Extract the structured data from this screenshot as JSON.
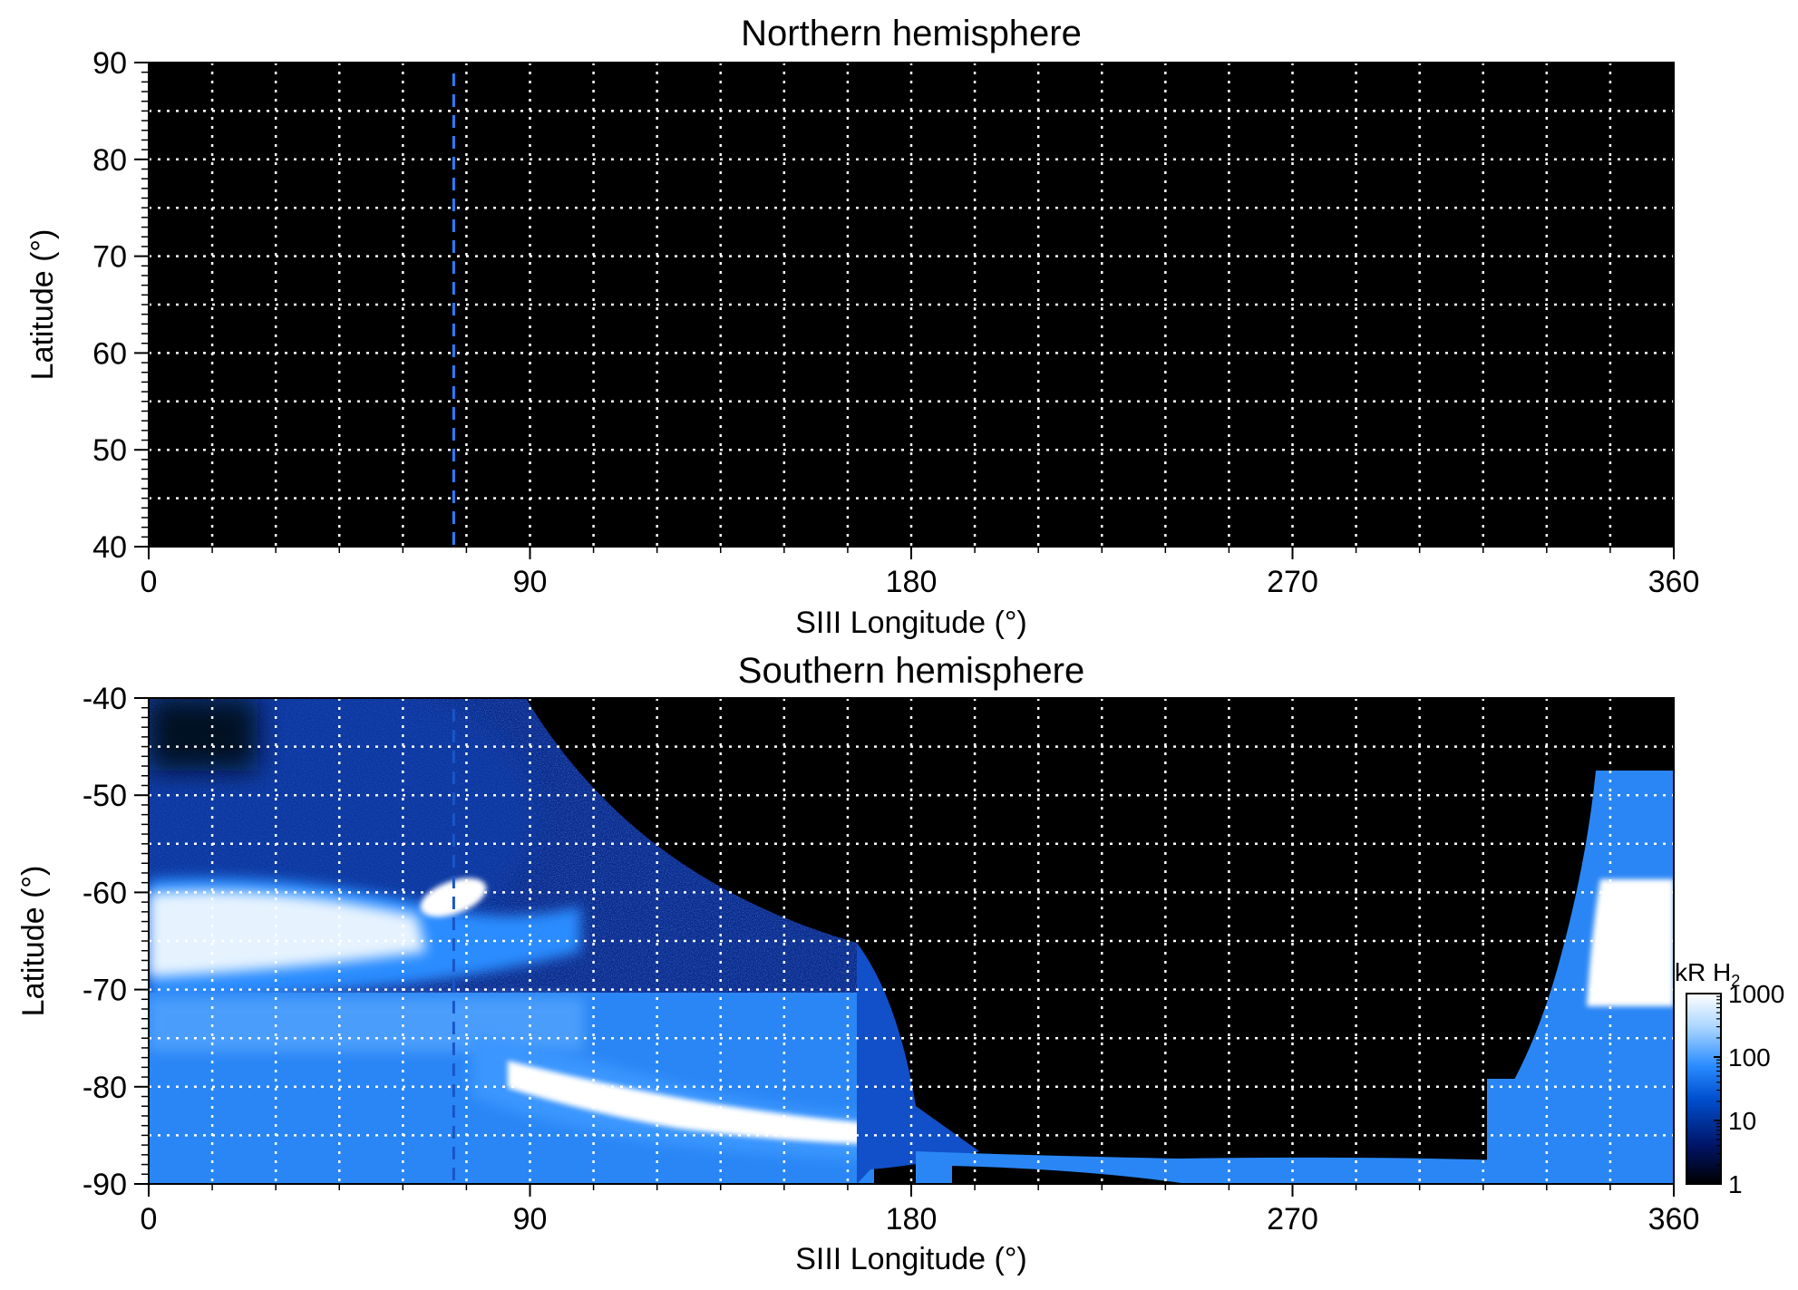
{
  "chart_data": [
    {
      "type": "heatmap",
      "title": "Northern hemisphere",
      "xlabel": "SIII Longitude (°)",
      "ylabel": "Latitude (°)",
      "xlim": [
        0,
        360
      ],
      "ylim": [
        40,
        90
      ],
      "xticks": [
        0,
        90,
        180,
        270,
        360
      ],
      "yticks": [
        40,
        50,
        60,
        70,
        80,
        90
      ],
      "grid": true,
      "grid_x_step": 15,
      "grid_y_step": 5,
      "reference_longitude": 72,
      "emission": "none (no auroral emission; map entirely dark)"
    },
    {
      "type": "heatmap",
      "title": "Southern hemisphere",
      "xlabel": "SIII Longitude (°)",
      "ylabel": "Latitude (°)",
      "xlim": [
        0,
        360
      ],
      "ylim": [
        -90,
        -40
      ],
      "xticks": [
        0,
        90,
        180,
        270,
        360
      ],
      "yticks": [
        -90,
        -80,
        -70,
        -60,
        -50,
        -40
      ],
      "grid": true,
      "grid_x_step": 15,
      "grid_y_step": 5,
      "reference_longitude": 72,
      "colorbar": {
        "label_main": "kR H",
        "label_sub": "2",
        "scale": "log",
        "range": [
          1,
          1000
        ],
        "ticks": [
          "1",
          "10",
          "100",
          "1000"
        ],
        "colors": [
          "#000000",
          "#001466",
          "#0050d0",
          "#2a8cff",
          "#a8d4ff",
          "#ffffff"
        ]
      },
      "emission_regions": [
        {
          "name": "main oval band",
          "peak_kR": 1000,
          "lat_range": [
            -79,
            -62
          ],
          "lon_range": [
            0,
            80
          ]
        },
        {
          "name": "equatorward arc",
          "peak_kR": 1000,
          "lat_range": [
            -87,
            -80
          ],
          "lon_range": [
            80,
            175
          ]
        },
        {
          "name": "compact bright spot",
          "peak_kR": 1000,
          "lon": 68,
          "lat": -61
        },
        {
          "name": "diffuse polar region",
          "peak_kR": 50,
          "lat_range": [
            -80,
            -40
          ],
          "lon_range": [
            0,
            170
          ]
        },
        {
          "name": "right edge band",
          "peak_kR": 1000,
          "lat_range": [
            -80,
            -62
          ],
          "lon_range": [
            340,
            360
          ]
        }
      ]
    }
  ]
}
